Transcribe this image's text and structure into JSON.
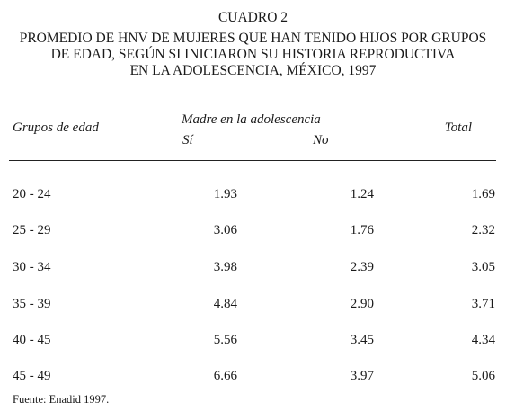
{
  "title": {
    "line1": "CUADRO 2",
    "line2": "PROMEDIO DE HNV DE MUJERES QUE HAN TENIDO HIJOS POR GRUPOS",
    "line3": "DE EDAD, SEGÚN SI INICIARON SU HISTORIA REPRODUCTIVA",
    "line4": "EN LA ADOLESCENCIA, MÉXICO, 1997"
  },
  "headers": {
    "grupos": "Grupos de edad",
    "madre": "Madre en la adolescencia",
    "si": "Sí",
    "no": "No",
    "total": "Total"
  },
  "rows": [
    {
      "grupo": "20 - 24",
      "si": "1.93",
      "no": "1.24",
      "total": "1.69"
    },
    {
      "grupo": "25 - 29",
      "si": "3.06",
      "no": "1.76",
      "total": "2.32"
    },
    {
      "grupo": "30 - 34",
      "si": "3.98",
      "no": "2.39",
      "total": "3.05"
    },
    {
      "grupo": "35 - 39",
      "si": "4.84",
      "no": "2.90",
      "total": "3.71"
    },
    {
      "grupo": "40 - 45",
      "si": "5.56",
      "no": "3.45",
      "total": "4.34"
    },
    {
      "grupo": "45 - 49",
      "si": "6.66",
      "no": "3.97",
      "total": "5.06"
    }
  ],
  "footer": "Fuente: Enadid 1997."
}
